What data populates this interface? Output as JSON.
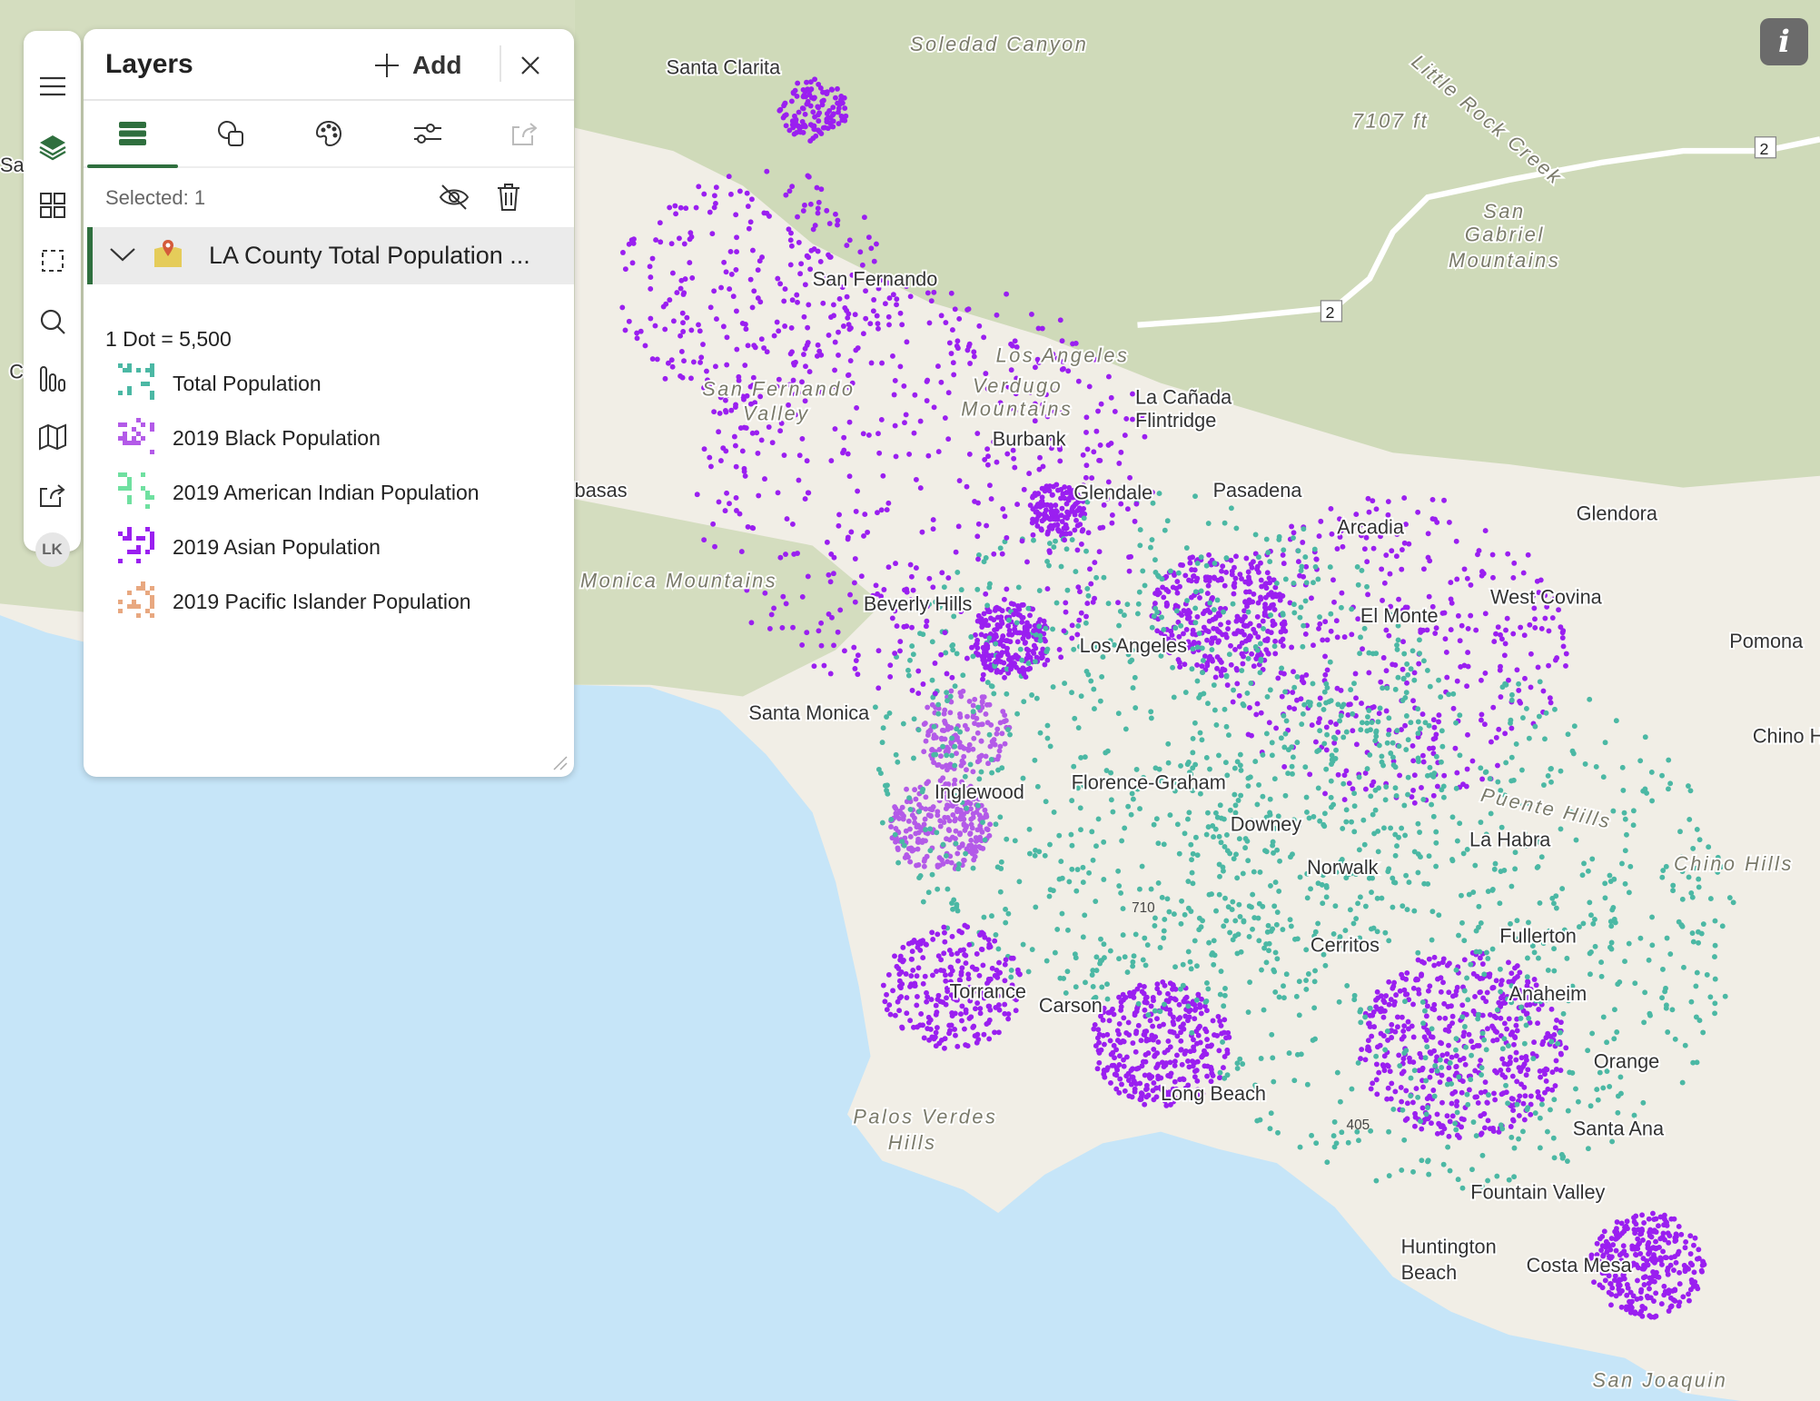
{
  "map": {
    "colors": {
      "ocean": "#c6e5f8",
      "land": "#f1eee6",
      "mountain": "#c9d6b0",
      "black_pop": "#b35ae8",
      "asian_pop": "#9a1ff0",
      "total_pop": "#4bb8a4"
    },
    "labels": [
      "Santa Clarita",
      "Soledad Canyon",
      "Little Rock Creek",
      "7107 ft",
      "San",
      "Gabriel",
      "Mountains",
      "San Fernando",
      "Los Angeles",
      "San Fernando",
      "Valley",
      "Verdugo",
      "Mountains",
      "La Cañada",
      "Flintridge",
      "Burbank",
      "Glendale",
      "Pasadena",
      "Arcadia",
      "Glendora",
      "basas",
      "Monica Mountains",
      "Beverly Hills",
      "Los Angeles",
      "El Monte",
      "West Covina",
      "Pomona",
      "Chino H",
      "Santa Monica",
      "Inglewood",
      "Florence-Graham",
      "Downey",
      "Puente Hills",
      "La Habra",
      "Chino Hills",
      "Norwalk",
      "Cerritos",
      "Fullerton",
      "Anaheim",
      "Torrance",
      "Carson",
      "Orange",
      "Long Beach",
      "Palos Verdes",
      "Hills",
      "Santa Ana",
      "Fountain Valley",
      "Huntington",
      "Beach",
      "Costa Mesa",
      "San Joaquin",
      "2",
      "2",
      "710",
      "405",
      "Sar",
      "Ca"
    ],
    "info_label": "i"
  },
  "rail": {
    "avatar": "LK"
  },
  "panel": {
    "title": "Layers",
    "add_label": "Add",
    "selected": "Selected: 1",
    "layer_name": "LA County Total Population ...",
    "dot_value": "1 Dot = 5,500",
    "legend": [
      {
        "label": "Total Population",
        "color": "#4bb8a4"
      },
      {
        "label": "2019 Black Population",
        "color": "#b35ae8"
      },
      {
        "label": "2019 American Indian Population",
        "color": "#6fe0a0"
      },
      {
        "label": "2019 Asian Population",
        "color": "#9a1ff0"
      },
      {
        "label": "2019 Pacific Islander Population",
        "color": "#e8a880"
      }
    ]
  }
}
